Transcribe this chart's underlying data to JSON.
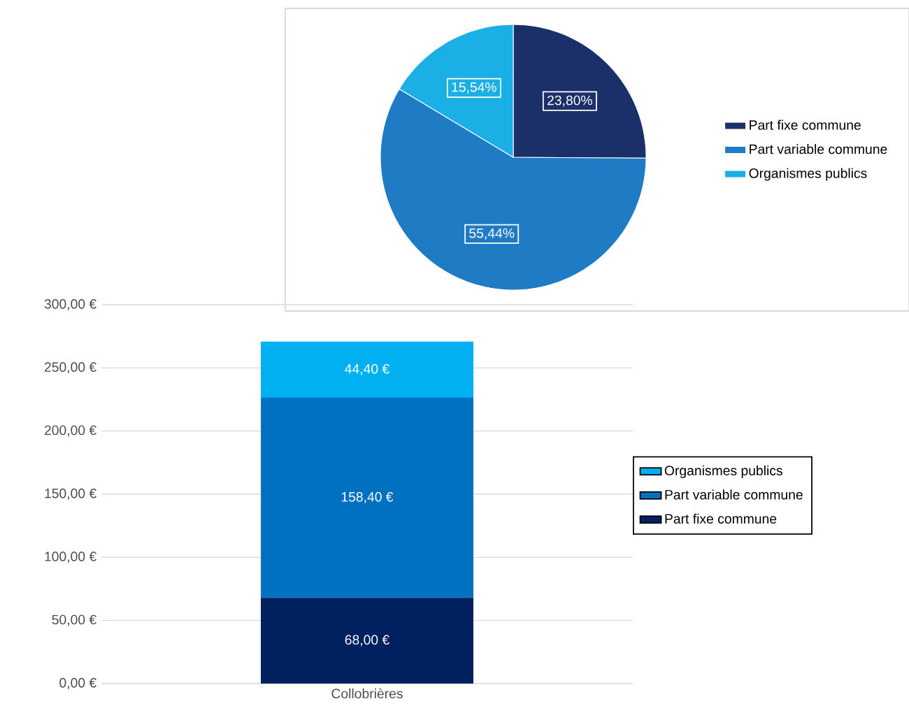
{
  "chart_data": [
    {
      "type": "pie",
      "categories": [
        "Part fixe commune",
        "Part variable commune",
        "Organismes publics"
      ],
      "values": [
        23.8,
        55.44,
        15.54
      ],
      "colors": [
        "#1b3068",
        "#1f7cc4",
        "#1ab0e6"
      ],
      "value_labels": [
        "23,80%",
        "55,44%",
        "15,54%"
      ],
      "legend": "right"
    },
    {
      "type": "bar",
      "categories": [
        "Collobrières"
      ],
      "stacked": true,
      "series": [
        {
          "name": "Part fixe commune",
          "color": "#002060",
          "values": [
            68.0
          ],
          "value_labels": [
            "68,00 €"
          ]
        },
        {
          "name": "Part variable commune",
          "color": "#0070c0",
          "values": [
            158.4
          ],
          "value_labels": [
            "158,40 €"
          ]
        },
        {
          "name": "Organismes publics",
          "color": "#00b0f0",
          "values": [
            44.4
          ],
          "value_labels": [
            "44,40 €"
          ]
        }
      ],
      "ylim": [
        0,
        300
      ],
      "yticks": [
        {
          "value": 0,
          "label": "0,00 €"
        },
        {
          "value": 50,
          "label": "50,00 €"
        },
        {
          "value": 100,
          "label": "100,00 €"
        },
        {
          "value": 150,
          "label": "150,00 €"
        },
        {
          "value": 200,
          "label": "200,00 €"
        },
        {
          "value": 250,
          "label": "250,00 €"
        },
        {
          "value": 300,
          "label": "300,00 €"
        }
      ],
      "grid": "y",
      "legend": "right"
    }
  ]
}
